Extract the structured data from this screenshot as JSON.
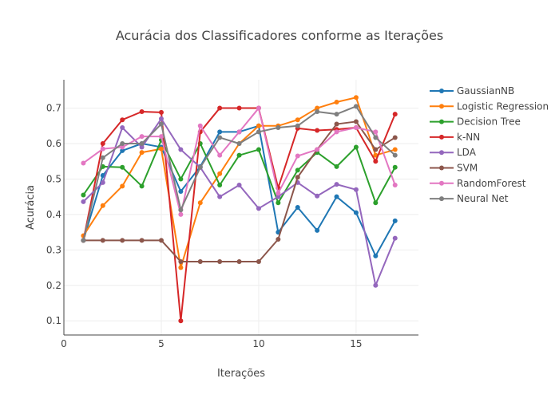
{
  "chart_data": {
    "type": "line",
    "title": "Acurácia dos Classificadores conforme as Iterações",
    "xlabel": "Iterações",
    "ylabel": "Acurácia",
    "xlim": [
      0,
      18.2
    ],
    "ylim": [
      0.06,
      0.78
    ],
    "xticks": [
      0,
      5,
      10,
      15
    ],
    "yticks": [
      0.1,
      0.2,
      0.3,
      0.4,
      0.5,
      0.6,
      0.7
    ],
    "grid": true,
    "legend_position": "top-right",
    "x": [
      1,
      2,
      3,
      4,
      5,
      6,
      7,
      8,
      9,
      10,
      11,
      12,
      13,
      14,
      15,
      16,
      17
    ],
    "series": [
      {
        "name": "GaussianNB",
        "color": "#1f77b4",
        "values": [
          0.327,
          0.51,
          0.58,
          0.6,
          0.59,
          0.465,
          0.535,
          0.633,
          0.633,
          0.65,
          0.35,
          0.42,
          0.355,
          0.45,
          0.405,
          0.283,
          0.382
        ]
      },
      {
        "name": "Logistic Regression",
        "color": "#ff7f0e",
        "values": [
          0.34,
          0.425,
          0.48,
          0.575,
          0.585,
          0.25,
          0.433,
          0.515,
          0.6,
          0.65,
          0.65,
          0.667,
          0.7,
          0.717,
          0.73,
          0.567,
          0.583
        ]
      },
      {
        "name": "Decision Tree",
        "color": "#2ca02c",
        "values": [
          0.455,
          0.535,
          0.533,
          0.48,
          0.61,
          0.5,
          0.6,
          0.483,
          0.567,
          0.583,
          0.433,
          0.525,
          0.575,
          0.535,
          0.59,
          0.433,
          0.533
        ]
      },
      {
        "name": "k-NN",
        "color": "#d62728",
        "values": [
          0.327,
          0.6,
          0.667,
          0.69,
          0.688,
          0.1,
          0.633,
          0.7,
          0.7,
          0.7,
          0.475,
          0.643,
          0.637,
          0.64,
          0.645,
          0.55,
          0.683
        ]
      },
      {
        "name": "LDA",
        "color": "#9467bd",
        "values": [
          0.436,
          0.49,
          0.645,
          0.59,
          0.67,
          0.583,
          0.533,
          0.45,
          0.483,
          0.417,
          0.45,
          0.49,
          0.452,
          0.485,
          0.47,
          0.2,
          0.333
        ]
      },
      {
        "name": "SVM",
        "color": "#8c564b",
        "values": [
          0.327,
          0.327,
          0.327,
          0.327,
          0.327,
          0.267,
          0.267,
          0.267,
          0.267,
          0.267,
          0.33,
          0.505,
          0.583,
          0.655,
          0.662,
          0.583,
          0.617
        ]
      },
      {
        "name": "RandomForest",
        "color": "#e377c2",
        "values": [
          0.545,
          0.585,
          0.59,
          0.62,
          0.62,
          0.4,
          0.65,
          0.567,
          0.633,
          0.7,
          0.46,
          0.565,
          0.583,
          0.633,
          0.645,
          0.633,
          0.483
        ]
      },
      {
        "name": "Neural Net",
        "color": "#7f7f7f",
        "values": [
          0.327,
          0.56,
          0.6,
          0.6,
          0.655,
          0.413,
          0.533,
          0.617,
          0.6,
          0.633,
          0.645,
          0.65,
          0.69,
          0.683,
          0.705,
          0.617,
          0.567
        ]
      }
    ]
  }
}
